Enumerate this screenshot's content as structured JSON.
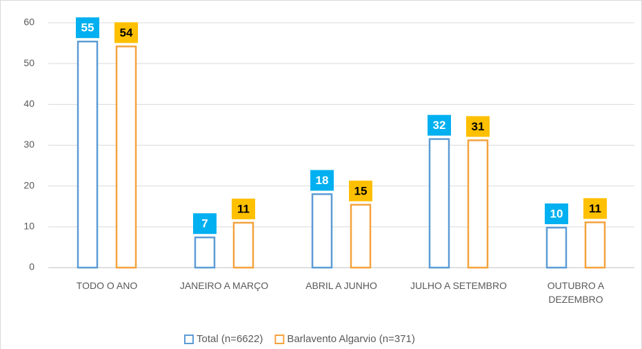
{
  "chart_data": {
    "type": "bar",
    "categories": [
      "TODO O ANO",
      "JANEIRO A MARÇO",
      "ABRIL A JUNHO",
      "JULHO A SETEMBRO",
      "OUTUBRO A DEZEMBRO"
    ],
    "series": [
      {
        "name": "Total (n=6622)",
        "color": "#5b9bd5",
        "label_color": "#00b0f0",
        "values": [
          55.4,
          7.4,
          18,
          31.5,
          9.8
        ],
        "value_labels": [
          "55",
          "7",
          "18",
          "32",
          "10"
        ]
      },
      {
        "name": "Barlavento Algarvio (n=371)",
        "color": "#f4a23c",
        "label_color": "#ffc000",
        "values": [
          54.2,
          11,
          15.4,
          31.2,
          11.1
        ],
        "value_labels": [
          "54",
          "11",
          "15",
          "31",
          "11"
        ]
      }
    ],
    "ylim": [
      0,
      60
    ],
    "yticks": [
      0,
      10,
      20,
      30,
      40,
      50,
      60
    ],
    "grid": true,
    "legend": "bottom"
  }
}
